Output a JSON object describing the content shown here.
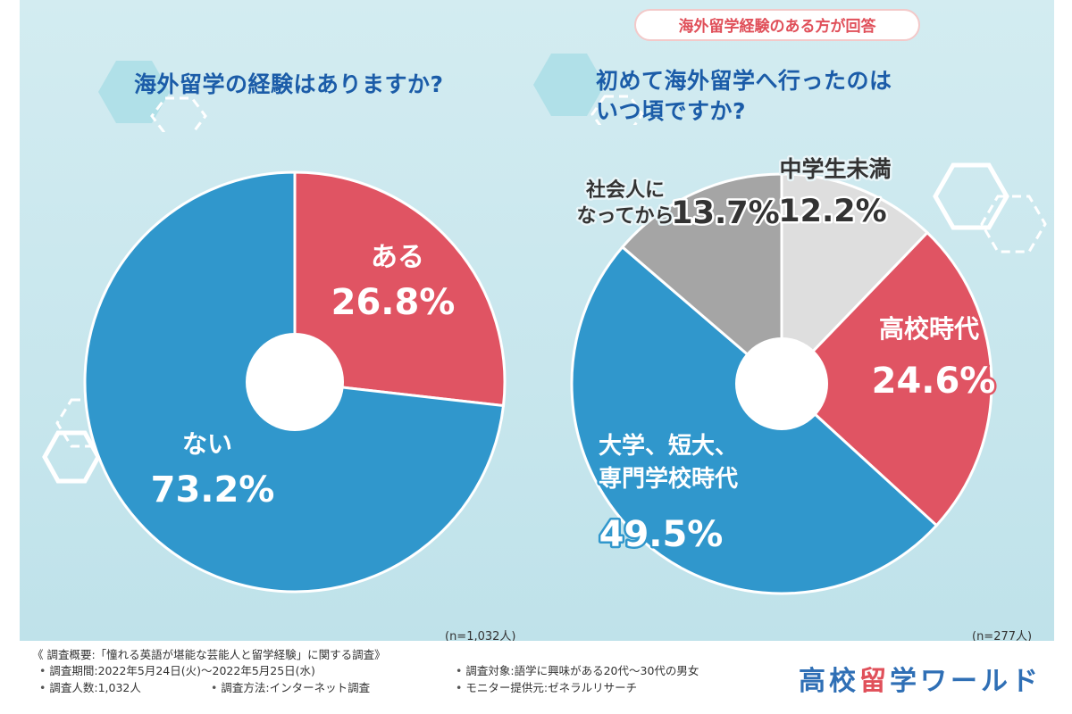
{
  "header_tag": "海外留学経験のある方が回答",
  "colors": {
    "red": "#e05463",
    "blue": "#3097cc",
    "gray": "#a5a5a5",
    "light_gray": "#dedede",
    "title_blue": "#1b5ca8",
    "brand_blue": "#2f6fb5",
    "brand_red": "#e0505a"
  },
  "chart_data": [
    {
      "type": "pie",
      "title": "海外留学の経験はありますか?",
      "slices": [
        {
          "label": "ある",
          "value": 26.8,
          "value_label": "26.8%",
          "color": "#e05463"
        },
        {
          "label": "ない",
          "value": 73.2,
          "value_label": "73.2%",
          "color": "#3097cc"
        }
      ],
      "sample_note": "(n=1,032人)"
    },
    {
      "type": "pie",
      "title_line1": "初めて海外留学へ行ったのは",
      "title_line2": "いつ頃ですか?",
      "slices": [
        {
          "label": "中学生未満",
          "value": 12.2,
          "value_label": "12.2%",
          "color": "#dedede"
        },
        {
          "label": "高校時代",
          "value": 24.6,
          "value_label": "24.6%",
          "color": "#e05463"
        },
        {
          "label_line1": "大学、短大、",
          "label_line2": "専門学校時代",
          "value": 49.5,
          "value_label": "49.5%",
          "color": "#3097cc"
        },
        {
          "label_line1": "社会人に",
          "label_line2": "なってから",
          "value": 13.7,
          "value_label": "13.7%",
          "color": "#a5a5a5"
        }
      ],
      "sample_note": "(n=277人)"
    }
  ],
  "footer": {
    "summary": "《 調査概要:「憧れる英語が堪能な芸能人と留学経験」に関する調査》",
    "period": "調査期間:2022年5月24日(火)〜2022年5月25日(水)",
    "target": "調査対象:語学に興味がある20代〜30代の男女",
    "count": "調査人数:1,032人",
    "method": "調査方法:インターネット調査",
    "provider": "モニター提供元:ゼネラルリサーチ",
    "bullet": "•"
  },
  "brand": "高校留学ワールド"
}
